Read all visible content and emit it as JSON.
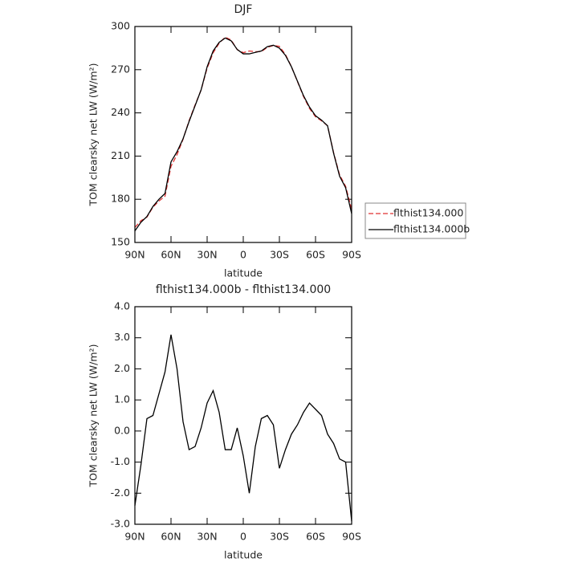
{
  "chart_data": [
    {
      "type": "line",
      "title": "DJF",
      "xlabel": "latitude",
      "ylabel": "TOM clearsky net LW (W/m²)",
      "x": [
        90,
        85,
        80,
        75,
        70,
        65,
        60,
        55,
        50,
        45,
        40,
        35,
        30,
        25,
        20,
        15,
        10,
        5,
        0,
        -5,
        -10,
        -15,
        -20,
        -25,
        -30,
        -35,
        -40,
        -45,
        -50,
        -55,
        -60,
        -65,
        -70,
        -75,
        -80,
        -85,
        -90
      ],
      "series": [
        {
          "name": "flthist134.000",
          "color": "#e03030",
          "linestyle": "dashed",
          "values": [
            160.4,
            165.1,
            167.6,
            174.5,
            178.8,
            182.1,
            202.9,
            211,
            221.7,
            234.6,
            245.5,
            255.9,
            271.1,
            281.7,
            288.4,
            292.6,
            290.6,
            283.9,
            281.8,
            283,
            282.5,
            282.6,
            285.5,
            286.8,
            286.2,
            280.6,
            272.1,
            261.8,
            251.4,
            243.1,
            237.3,
            234.5,
            231.1,
            212.4,
            196.9,
            189,
            172.9
          ]
        },
        {
          "name": "flthist134.000b",
          "color": "#000000",
          "linestyle": "solid",
          "values": [
            158,
            164,
            168,
            175,
            180,
            184,
            206,
            213,
            222,
            234,
            245,
            256,
            272,
            283,
            289,
            292,
            290,
            284,
            281,
            281,
            282,
            283,
            286,
            287,
            285,
            280,
            272,
            262,
            252,
            244,
            238,
            235,
            231,
            212,
            196,
            188,
            170
          ]
        }
      ],
      "xlim": [
        90,
        -90
      ],
      "xticks": [
        {
          "value": 90,
          "label": "90N"
        },
        {
          "value": 60,
          "label": "60N"
        },
        {
          "value": 30,
          "label": "30N"
        },
        0,
        {
          "value": -30,
          "label": "30S"
        },
        {
          "value": -60,
          "label": "60S"
        },
        {
          "value": -90,
          "label": "90S"
        }
      ],
      "ylim": [
        150,
        300
      ],
      "yticks": [
        150,
        180,
        210,
        240,
        270,
        300
      ],
      "legend": "right"
    },
    {
      "type": "line",
      "title": "flthist134.000b - flthist134.000",
      "xlabel": "latitude",
      "ylabel": "TOM clearsky net LW (W/m²)",
      "x": [
        90,
        85,
        80,
        75,
        70,
        65,
        60,
        55,
        50,
        45,
        40,
        35,
        30,
        25,
        20,
        15,
        10,
        5,
        0,
        -5,
        -10,
        -15,
        -20,
        -25,
        -30,
        -35,
        -40,
        -45,
        -50,
        -55,
        -60,
        -65,
        -70,
        -75,
        -80,
        -85,
        -90
      ],
      "series": [
        {
          "color": "#000000",
          "linestyle": "solid",
          "values": [
            -2.4,
            -1.1,
            0.4,
            0.5,
            1.2,
            1.9,
            3.1,
            2.0,
            0.3,
            -0.6,
            -0.5,
            0.1,
            0.9,
            1.3,
            0.6,
            -0.6,
            -0.6,
            0.1,
            -0.8,
            -2.0,
            -0.5,
            0.4,
            0.5,
            0.2,
            -1.2,
            -0.6,
            -0.1,
            0.2,
            0.6,
            0.9,
            0.7,
            0.5,
            -0.1,
            -0.4,
            -0.9,
            -1.0,
            -2.9
          ]
        }
      ],
      "xlim": [
        90,
        -90
      ],
      "xticks": [
        {
          "value": 90,
          "label": "90N"
        },
        {
          "value": 60,
          "label": "60N"
        },
        {
          "value": 30,
          "label": "30N"
        },
        0,
        {
          "value": -30,
          "label": "30S"
        },
        {
          "value": -60,
          "label": "60S"
        },
        {
          "value": -90,
          "label": "90S"
        }
      ],
      "ylim": [
        -3,
        4
      ],
      "yticks": [
        {
          "value": -3,
          "label": "-3.0"
        },
        {
          "value": -2,
          "label": "-2.0"
        },
        {
          "value": -1,
          "label": "-1.0"
        },
        {
          "value": 0,
          "label": "0.0"
        },
        {
          "value": 1,
          "label": "1.0"
        },
        {
          "value": 2,
          "label": "2.0"
        },
        {
          "value": 3,
          "label": "3.0"
        },
        {
          "value": 4,
          "label": "4.0"
        }
      ]
    }
  ]
}
